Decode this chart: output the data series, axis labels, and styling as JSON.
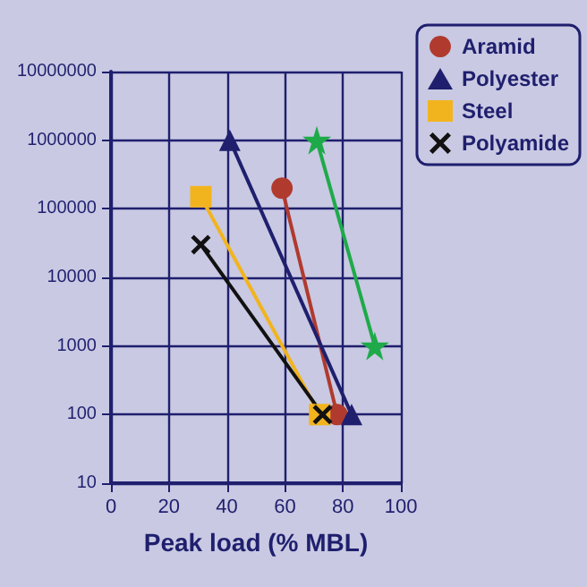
{
  "chart_data": {
    "type": "line",
    "xlabel": "Peak load (% MBL)",
    "log": "y",
    "xlim": [
      0,
      100
    ],
    "xticks": [
      0,
      20,
      40,
      60,
      80,
      100
    ],
    "ylim": [
      10,
      10000000
    ],
    "yticks": [
      10,
      100,
      1000,
      10000,
      100000,
      1000000,
      10000000
    ],
    "grid": true,
    "legend": "top right",
    "series": [
      {
        "color": "#1faa4a",
        "marker": "star",
        "x": [
          71,
          91
        ],
        "values": [
          1000000,
          1000
        ]
      },
      {
        "name": "Aramid",
        "color": "#b03a2e",
        "marker": "circle",
        "x": [
          59,
          78
        ],
        "values": [
          200000,
          100
        ]
      },
      {
        "name": "Polyester",
        "color": "#1f1f6e",
        "marker": "triangle",
        "x": [
          41,
          83
        ],
        "values": [
          1000000,
          100
        ]
      },
      {
        "name": "Steel",
        "color": "#f2b41e",
        "marker": "square",
        "x": [
          31,
          72
        ],
        "values": [
          150000,
          100
        ]
      },
      {
        "name": "Polyamide",
        "color": "#111111",
        "marker": "cross",
        "x": [
          31,
          73
        ],
        "values": [
          30000,
          100
        ]
      }
    ]
  }
}
